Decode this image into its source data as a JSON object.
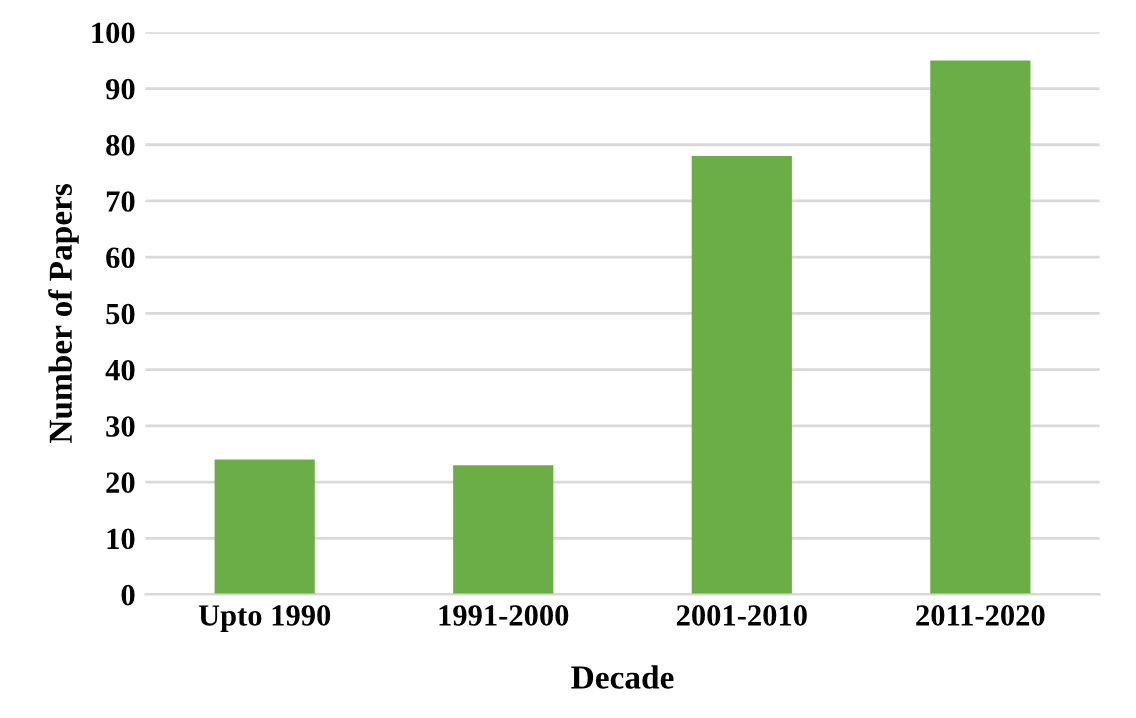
{
  "chart_data": {
    "type": "bar",
    "xlabel": "Decade",
    "ylabel": "Number of Papers",
    "categories": [
      "Upto 1990",
      "1991-2000",
      "2001-2010",
      "2011-2020"
    ],
    "values": [
      24,
      23,
      78,
      95
    ],
    "color": "#6aae45",
    "ylim": [
      0,
      100
    ],
    "yticks": [
      0,
      10,
      20,
      30,
      40,
      50,
      60,
      70,
      80,
      90,
      100
    ],
    "grid": "y"
  }
}
